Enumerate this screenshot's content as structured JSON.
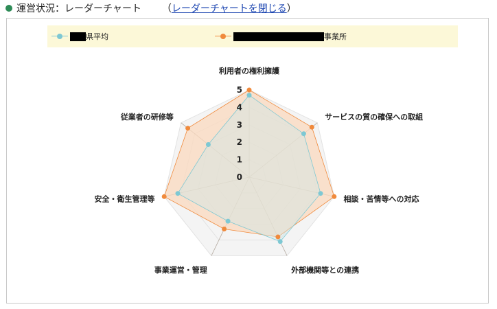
{
  "header": {
    "title": "運営状況：レーダーチャート",
    "close_open": "（",
    "close_label": "レーダーチャートを閉じる",
    "close_close": "）"
  },
  "colors": {
    "series_pref": "#7ec8d3",
    "series_office": "#f08a3c",
    "office_fill": "#fbd9bf",
    "pref_fill": "#cfe6e6",
    "grid": "#e2e2e2",
    "outer_fill": "#f4f4f4",
    "axis_line": "#b4aaa0",
    "legend_bg": "#fcf8d8"
  },
  "chart_data": {
    "type": "radar",
    "axes": [
      "利用者の権利擁護",
      "サービスの質の確保への取組",
      "相談・苦情等への対応",
      "外部機関等との連携",
      "事業運営・管理",
      "安全・衛生管理等",
      "従業者の研修等"
    ],
    "rlim": [
      0,
      5
    ],
    "ticks": [
      "0",
      "1",
      "2",
      "3",
      "4",
      "5"
    ],
    "legend_position": "top",
    "series": [
      {
        "name_suffix": "県平均",
        "values": [
          4.7,
          4.0,
          4.2,
          4.1,
          2.8,
          4.2,
          3.0
        ]
      },
      {
        "name_suffix": "事業所",
        "values": [
          5.0,
          4.6,
          5.0,
          3.8,
          3.3,
          5.0,
          4.5
        ]
      }
    ]
  }
}
